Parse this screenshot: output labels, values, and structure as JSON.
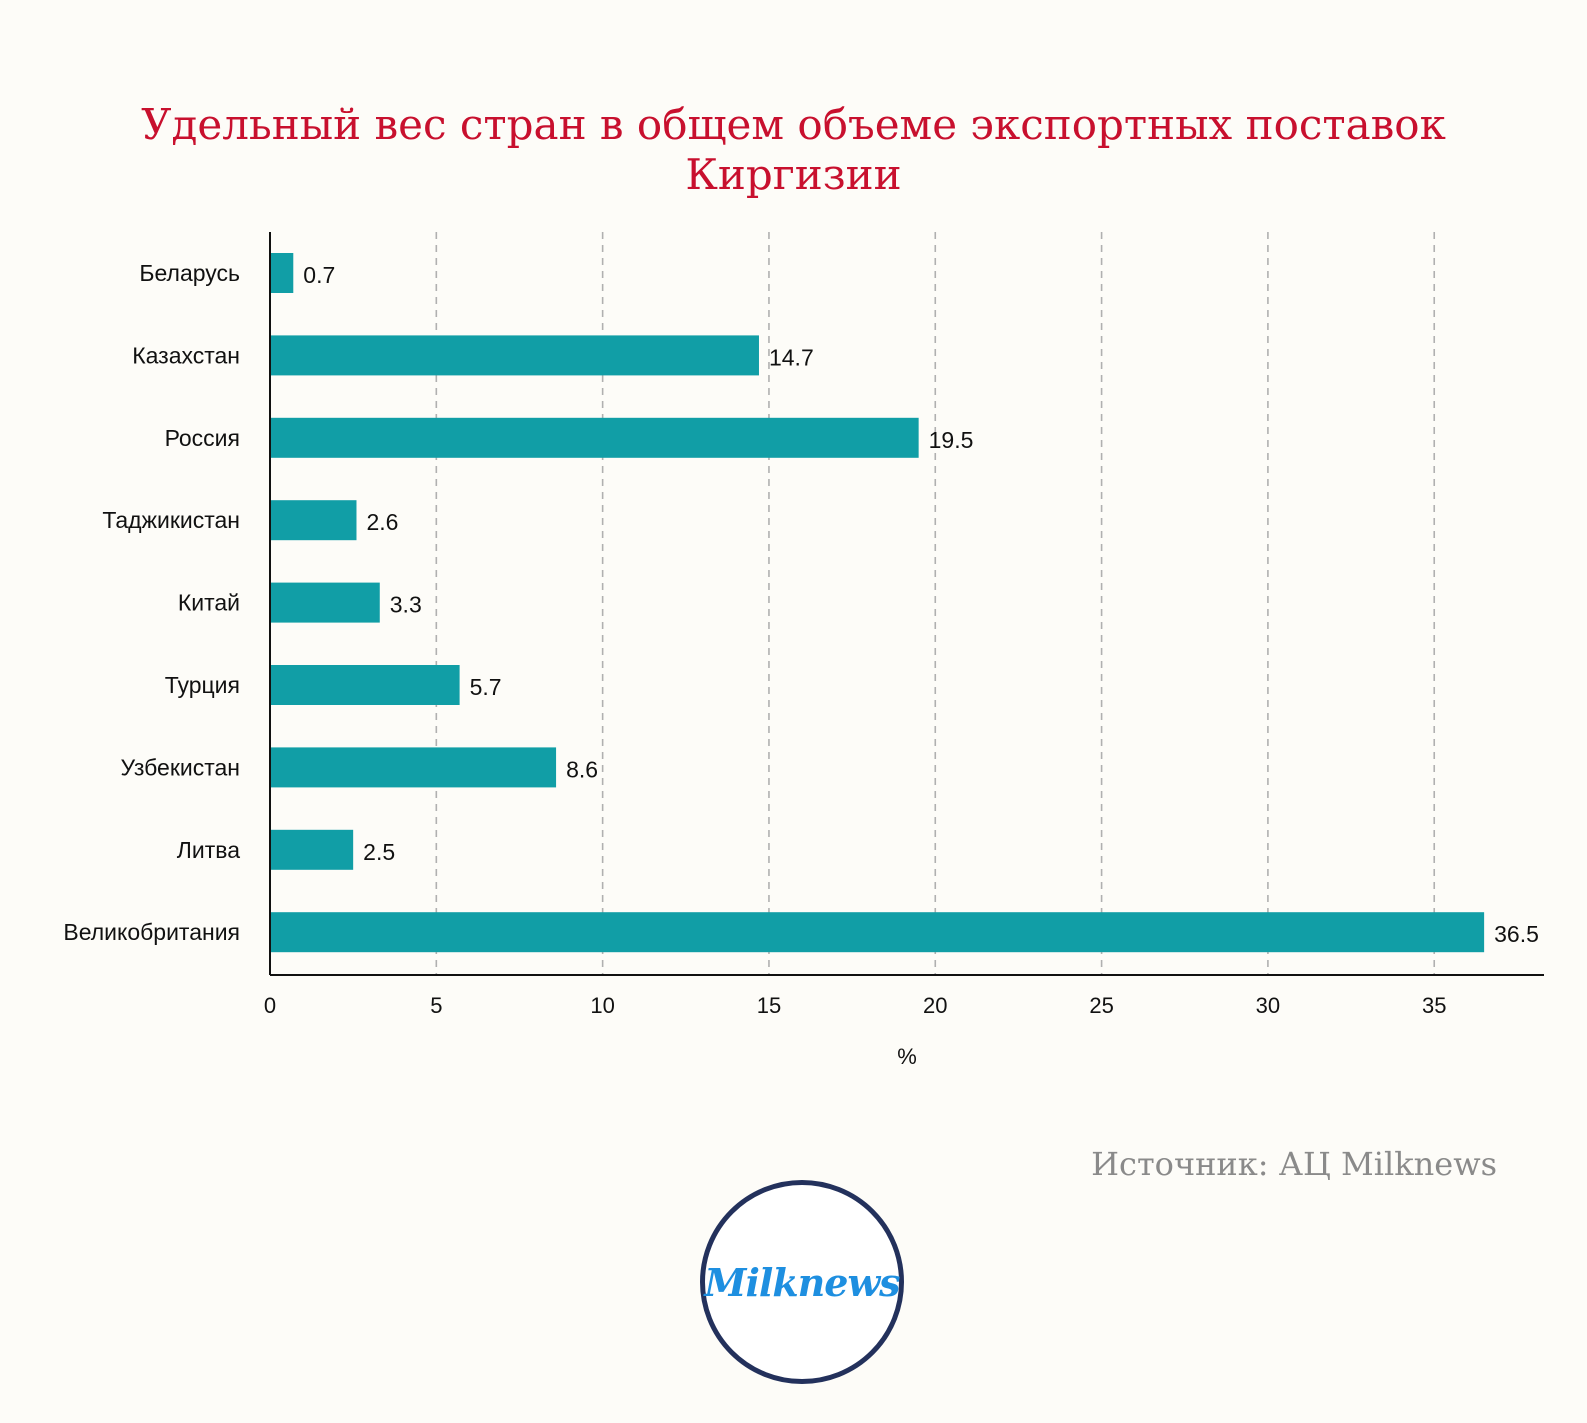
{
  "page": {
    "title_line1": "Удельный вес стран в общем объеме экспортных поставок",
    "title_line2": "Киргизии",
    "source": "Источник: АЦ Milknews",
    "logo_text": "Milknews"
  },
  "colors": {
    "bar": "#119ea6",
    "title": "#c8102e",
    "grid": "#b0b0b0",
    "axis": "#111111",
    "logo_ring": "#23315c",
    "logo_text": "#1e8fe0"
  },
  "chart_data": {
    "type": "bar",
    "orientation": "horizontal",
    "title": "Удельный вес стран в общем объеме экспортных поставок Киргизии",
    "categories": [
      "Беларусь",
      "Казахстан",
      "Россия",
      "Таджикистан",
      "Китай",
      "Турция",
      "Узбекистан",
      "Литва",
      "Великобритания"
    ],
    "values": [
      0.7,
      14.7,
      19.5,
      2.6,
      3.3,
      5.7,
      8.6,
      2.5,
      36.5
    ],
    "value_labels": [
      "0.7",
      "14.7",
      "19.5",
      "2.6",
      "3.3",
      "5.7",
      "8.6",
      "2.5",
      "36.5"
    ],
    "xlabel": "%",
    "ylabel": "",
    "xlim": [
      0,
      38.3
    ],
    "xticks": [
      0,
      5,
      10,
      15,
      20,
      25,
      30,
      35
    ],
    "grid": "vertical dashed",
    "legend": "none"
  }
}
